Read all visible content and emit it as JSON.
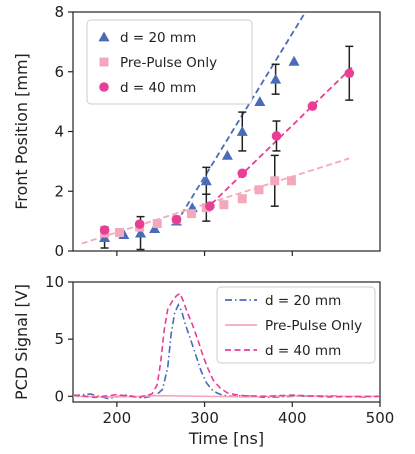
{
  "chart_data": [
    {
      "type": "scatter",
      "xlabel": "",
      "ylabel": "Front Position [mm]",
      "xlim": [
        150,
        500
      ],
      "ylim": [
        0,
        8
      ],
      "x_ticks": [
        200,
        300,
        400
      ],
      "y_ticks": [
        0,
        2,
        4,
        6,
        8
      ],
      "legend": "top-left",
      "grid": false,
      "series": [
        {
          "name": "d = 20 mm",
          "color": "#4a6bb8",
          "marker": "triangle",
          "x": [
            186,
            208,
            227,
            243,
            268,
            286,
            302,
            326,
            343,
            363,
            381,
            402
          ],
          "y": [
            0.45,
            0.55,
            0.6,
            0.75,
            1.0,
            1.45,
            2.35,
            3.2,
            4.0,
            5.0,
            5.75,
            6.35
          ],
          "errors": [
            0.35,
            0,
            0.55,
            0,
            0,
            0,
            0.45,
            0,
            0.65,
            0,
            0.5,
            0
          ],
          "fit": {
            "x": [
              268,
              415
            ],
            "y": [
              0.95,
              8.0
            ]
          }
        },
        {
          "name": "Pre-Pulse Only",
          "color": "#f4a8bc",
          "marker": "square",
          "x": [
            186,
            203,
            226,
            246,
            268,
            285,
            302,
            322,
            343,
            362,
            380,
            399
          ],
          "y": [
            0.6,
            0.62,
            0.8,
            0.92,
            1.05,
            1.25,
            1.45,
            1.55,
            1.75,
            2.05,
            2.35,
            2.35
          ],
          "errors": [
            0,
            0,
            0,
            0,
            0,
            0,
            0.45,
            0,
            0,
            0,
            0.85,
            0
          ],
          "fit": {
            "x": [
              160,
              465
            ],
            "y": [
              0.25,
              3.1
            ]
          }
        },
        {
          "name": "d = 40 mm",
          "color": "#e83e96",
          "marker": "circle",
          "x": [
            186,
            226,
            268,
            306,
            343,
            382,
            423,
            465
          ],
          "y": [
            0.7,
            0.9,
            1.05,
            1.5,
            2.6,
            3.85,
            4.85,
            5.95
          ],
          "errors": [
            0,
            0,
            0,
            0,
            0,
            0.5,
            0,
            0.9
          ],
          "fit": {
            "x": [
              300,
              470
            ],
            "y": [
              1.35,
              6.2
            ]
          }
        }
      ]
    },
    {
      "type": "line",
      "xlabel": "Time [ns]",
      "ylabel": "PCD Signal [V]",
      "xlim": [
        150,
        500
      ],
      "ylim": [
        -0.5,
        10
      ],
      "x_ticks": [
        200,
        300,
        400,
        500
      ],
      "y_ticks": [
        0,
        5,
        10
      ],
      "legend": "top-right",
      "grid": false,
      "series": [
        {
          "name": "d = 20 mm",
          "color": "#4a6bb8",
          "style": "dashdot",
          "x": [
            150,
            170,
            190,
            210,
            230,
            245,
            252,
            258,
            262,
            266,
            270,
            274,
            278,
            284,
            290,
            296,
            302,
            308,
            314,
            320,
            330,
            345,
            370,
            400,
            440,
            480,
            500
          ],
          "y": [
            0.05,
            0.2,
            -0.2,
            0.1,
            -0.15,
            0.1,
            0.6,
            2.5,
            5.5,
            7.3,
            8.0,
            7.4,
            6.3,
            5.0,
            3.6,
            2.2,
            1.2,
            0.6,
            0.3,
            0.1,
            0.0,
            0.05,
            -0.1,
            0.0,
            0.05,
            -0.05,
            0.0
          ]
        },
        {
          "name": "Pre-Pulse Only",
          "color": "#f4a8bc",
          "style": "solid",
          "x": [
            150,
            200,
            250,
            300,
            350,
            400,
            450,
            500
          ],
          "y": [
            0.0,
            -0.05,
            0.05,
            0.0,
            -0.05,
            0.05,
            0.0,
            0.0
          ],
          "fit": null
        },
        {
          "name": "d = 40 mm",
          "color": "#e83e96",
          "style": "dashed",
          "x": [
            150,
            175,
            200,
            225,
            240,
            246,
            250,
            254,
            258,
            263,
            268,
            272,
            276,
            280,
            286,
            292,
            298,
            304,
            310,
            318,
            326,
            335,
            345,
            370,
            400,
            440,
            500
          ],
          "y": [
            0.1,
            -0.1,
            0.15,
            -0.1,
            0.2,
            1.0,
            3.0,
            5.8,
            7.6,
            8.3,
            8.8,
            9.0,
            8.3,
            7.4,
            6.3,
            5.0,
            3.6,
            2.4,
            1.4,
            0.7,
            0.3,
            0.15,
            0.05,
            0.0,
            0.1,
            -0.05,
            0.0
          ]
        }
      ]
    }
  ]
}
